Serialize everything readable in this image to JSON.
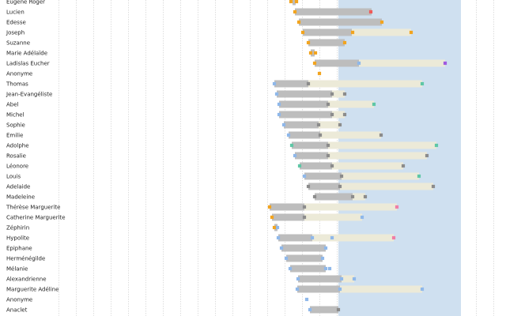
{
  "chart_data": {
    "type": "timeline",
    "x_unit": "chart x scale (ticks not printed)",
    "xlim": [
      0,
      640
    ],
    "shaded_region": [
      428,
      583
    ],
    "grid": true,
    "colors": {
      "life": "#bdbdbd",
      "span": "#ecead8",
      "shade": "#cfe0f0",
      "grid": "#c8c8c8",
      "orange": "#f2a41f",
      "gray": "#8c8c8c",
      "blue": "#8fb8ea",
      "teal": "#5fc7a6",
      "red": "#ef5a5a",
      "purple": "#a05ae0",
      "pink": "#f07ea6"
    },
    "rows": [
      {
        "name": "Eugène Roger",
        "bar": [
          370,
          374
        ],
        "span": null,
        "markers": [
          [
            368,
            "orange"
          ],
          [
            375,
            "orange"
          ]
        ]
      },
      {
        "name": "Lucien",
        "bar": [
          373,
          470
        ],
        "span": null,
        "markers": [
          [
            373,
            "orange"
          ],
          [
            469,
            "red"
          ]
        ]
      },
      {
        "name": "Edesse",
        "bar": [
          378,
          483
        ],
        "span": null,
        "markers": [
          [
            378,
            "orange"
          ],
          [
            483,
            "orange"
          ]
        ]
      },
      {
        "name": "Joseph",
        "bar": [
          383,
          445
        ],
        "span": [
          445,
          520
        ],
        "markers": [
          [
            383,
            "orange"
          ],
          [
            446,
            "orange"
          ],
          [
            520,
            "orange"
          ]
        ]
      },
      {
        "name": "Suzanne",
        "bar": [
          390,
          436
        ],
        "span": null,
        "markers": [
          [
            390,
            "orange"
          ],
          [
            436,
            "orange"
          ]
        ]
      },
      {
        "name": "Marie Adélaïde",
        "bar": [
          393,
          398
        ],
        "span": null,
        "markers": [
          [
            393,
            "orange"
          ],
          [
            399,
            "orange"
          ]
        ]
      },
      {
        "name": "Ladislas Eucher",
        "bar": [
          398,
          454
        ],
        "span": [
          454,
          563
        ],
        "markers": [
          [
            398,
            "orange"
          ],
          [
            454,
            "blue"
          ],
          [
            563,
            "purple"
          ]
        ]
      },
      {
        "name": "Anonyme",
        "bar": null,
        "span": null,
        "markers": [
          [
            404,
            "orange"
          ]
        ]
      },
      {
        "name": "Thomas",
        "bar": [
          347,
          390
        ],
        "span": [
          390,
          534
        ],
        "markers": [
          [
            347,
            "blue"
          ],
          [
            390,
            "gray"
          ],
          [
            534,
            "teal"
          ]
        ]
      },
      {
        "name": "Jean-Evangéliste",
        "bar": [
          350,
          420
        ],
        "span": [
          420,
          436
        ],
        "markers": [
          [
            350,
            "blue"
          ],
          [
            420,
            "gray"
          ],
          [
            436,
            "gray"
          ]
        ]
      },
      {
        "name": "Abel",
        "bar": [
          353,
          415
        ],
        "span": [
          415,
          473
        ],
        "markers": [
          [
            353,
            "blue"
          ],
          [
            415,
            "gray"
          ],
          [
            473,
            "teal"
          ]
        ]
      },
      {
        "name": "Michel",
        "bar": [
          353,
          420
        ],
        "span": [
          420,
          436
        ],
        "markers": [
          [
            353,
            "blue"
          ],
          [
            420,
            "gray"
          ],
          [
            436,
            "gray"
          ]
        ]
      },
      {
        "name": "Sophie",
        "bar": [
          359,
          403
        ],
        "span": [
          403,
          430
        ],
        "markers": [
          [
            359,
            "blue"
          ],
          [
            403,
            "gray"
          ],
          [
            430,
            "gray"
          ]
        ]
      },
      {
        "name": "Emilie",
        "bar": [
          365,
          405
        ],
        "span": [
          405,
          482
        ],
        "markers": [
          [
            365,
            "blue"
          ],
          [
            405,
            "gray"
          ],
          [
            482,
            "gray"
          ]
        ]
      },
      {
        "name": "Adolphe",
        "bar": [
          369,
          415
        ],
        "span": [
          415,
          552
        ],
        "markers": [
          [
            369,
            "teal"
          ],
          [
            415,
            "gray"
          ],
          [
            552,
            "teal"
          ]
        ]
      },
      {
        "name": "Rosalie",
        "bar": [
          373,
          415
        ],
        "span": [
          415,
          540
        ],
        "markers": [
          [
            373,
            "blue"
          ],
          [
            415,
            "gray"
          ],
          [
            540,
            "gray"
          ]
        ]
      },
      {
        "name": "Léonore",
        "bar": [
          379,
          420
        ],
        "span": [
          420,
          510
        ],
        "markers": [
          [
            379,
            "teal"
          ],
          [
            420,
            "gray"
          ],
          [
            510,
            "gray"
          ]
        ]
      },
      {
        "name": "Louis",
        "bar": [
          385,
          432
        ],
        "span": [
          432,
          530
        ],
        "markers": [
          [
            385,
            "blue"
          ],
          [
            432,
            "gray"
          ],
          [
            530,
            "teal"
          ]
        ]
      },
      {
        "name": "Adelaide",
        "bar": [
          390,
          430
        ],
        "span": [
          430,
          548
        ],
        "markers": [
          [
            390,
            "gray"
          ],
          [
            430,
            "gray"
          ],
          [
            548,
            "gray"
          ]
        ]
      },
      {
        "name": "Madeleine",
        "bar": [
          398,
          446
        ],
        "span": [
          446,
          462
        ],
        "markers": [
          [
            398,
            "gray"
          ],
          [
            446,
            "gray"
          ],
          [
            462,
            "gray"
          ]
        ]
      },
      {
        "name": "Thérèse Marguerite",
        "bar": [
          341,
          385
        ],
        "span": [
          385,
          502
        ],
        "markers": [
          [
            341,
            "orange"
          ],
          [
            385,
            "gray"
          ],
          [
            502,
            "pink"
          ]
        ]
      },
      {
        "name": "Catherine Marguerite",
        "bar": [
          344,
          385
        ],
        "span": [
          385,
          458
        ],
        "markers": [
          [
            344,
            "orange"
          ],
          [
            385,
            "gray"
          ],
          [
            458,
            "blue"
          ]
        ]
      },
      {
        "name": "Zéphirin",
        "bar": [
          347,
          351
        ],
        "span": null,
        "markers": [
          [
            347,
            "orange"
          ],
          [
            351,
            "blue"
          ]
        ]
      },
      {
        "name": "Hypolite",
        "bar": [
          352,
          395
        ],
        "span": [
          395,
          498
        ],
        "markers": [
          [
            352,
            "blue"
          ],
          [
            395,
            "blue"
          ],
          [
            420,
            "blue"
          ],
          [
            498,
            "pink"
          ]
        ]
      },
      {
        "name": "Epiphane",
        "bar": [
          356,
          412
        ],
        "span": null,
        "markers": [
          [
            356,
            "blue"
          ],
          [
            412,
            "blue"
          ]
        ]
      },
      {
        "name": "Herménégilde",
        "bar": [
          362,
          408
        ],
        "span": null,
        "markers": [
          [
            362,
            "blue"
          ],
          [
            408,
            "blue"
          ]
        ]
      },
      {
        "name": "Mélanie",
        "bar": [
          367,
          412
        ],
        "span": null,
        "markers": [
          [
            367,
            "blue"
          ],
          [
            412,
            "blue"
          ],
          [
            417,
            "blue"
          ]
        ]
      },
      {
        "name": "Alexandrienne",
        "bar": [
          377,
          432
        ],
        "span": [
          432,
          448
        ],
        "markers": [
          [
            377,
            "blue"
          ],
          [
            432,
            "blue"
          ],
          [
            448,
            "blue"
          ]
        ]
      },
      {
        "name": "Marguerite Adéline",
        "bar": [
          376,
          430
        ],
        "span": [
          430,
          534
        ],
        "markers": [
          [
            376,
            "blue"
          ],
          [
            430,
            "blue"
          ],
          [
            534,
            "blue"
          ]
        ]
      },
      {
        "name": "Anonyme",
        "bar": null,
        "span": null,
        "markers": [
          [
            388,
            "blue"
          ]
        ]
      },
      {
        "name": "Anaclet",
        "bar": [
          392,
          428
        ],
        "span": null,
        "markers": [
          [
            392,
            "blue"
          ],
          [
            428,
            "gray"
          ]
        ]
      }
    ]
  }
}
